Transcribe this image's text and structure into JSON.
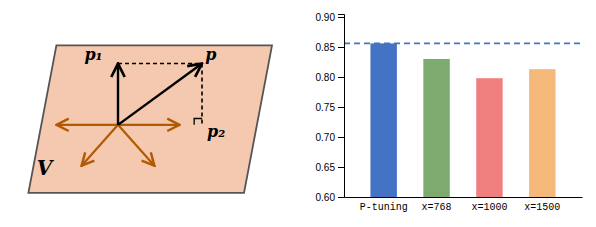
{
  "chart_data": {
    "type": "bar",
    "categories": [
      "P-tuning",
      "x=768",
      "x=1000",
      "x=1500"
    ],
    "values": [
      0.856,
      0.83,
      0.798,
      0.813
    ],
    "colors": [
      "#4472C4",
      "#7daa6e",
      "#f08080",
      "#f4b87a"
    ],
    "reference_value": 0.856,
    "ylim": [
      0.6,
      0.905
    ],
    "yticks": [
      {
        "value": 0.6,
        "label": "0.60"
      },
      0.65,
      {
        "value": 0.7,
        "label": "0.70"
      },
      0.75,
      {
        "value": 0.8,
        "label": "0.80"
      },
      0.85,
      {
        "value": 0.9,
        "label": "0.90"
      }
    ],
    "grid": false,
    "annotations": [
      "p₁",
      "p",
      "p₂",
      "V"
    ]
  }
}
